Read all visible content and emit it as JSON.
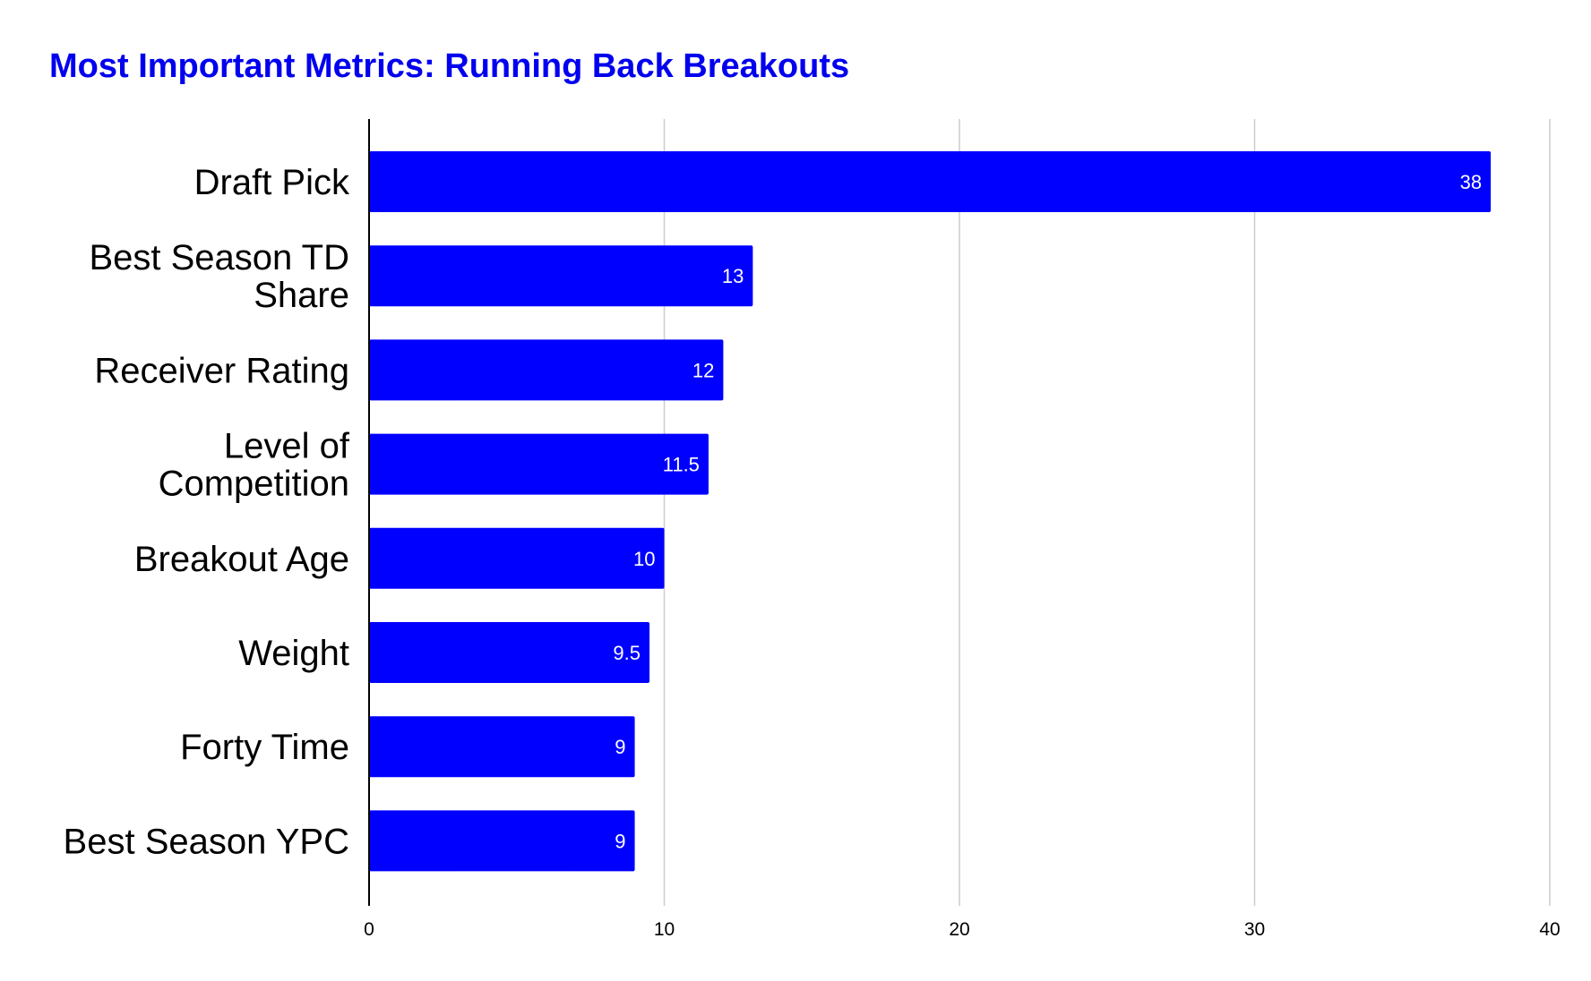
{
  "chart_data": {
    "type": "bar",
    "orientation": "horizontal",
    "title": "Most Important Metrics: Running Back Breakouts",
    "xlabel": "",
    "ylabel": "",
    "categories": [
      "Draft Pick",
      "Best Season TD Share",
      "Receiver Rating",
      "Level of Competition",
      "Breakout Age",
      "Weight",
      "Forty Time",
      "Best Season YPC"
    ],
    "category_lines": [
      [
        "Draft Pick"
      ],
      [
        "Best Season TD",
        "Share"
      ],
      [
        "Receiver Rating"
      ],
      [
        "Level of",
        "Competition"
      ],
      [
        "Breakout Age"
      ],
      [
        "Weight"
      ],
      [
        "Forty Time"
      ],
      [
        "Best Season YPC"
      ]
    ],
    "values": [
      38,
      13,
      12,
      11.5,
      10,
      9.5,
      9,
      9
    ],
    "data_labels": [
      "38",
      "13",
      "12",
      "11.5",
      "10",
      "9.5",
      "9",
      "9"
    ],
    "xlim": [
      0,
      40
    ],
    "xticks": [
      0,
      10,
      20,
      30,
      40
    ],
    "xtick_labels": [
      "0",
      "10",
      "20",
      "30",
      "40"
    ],
    "grid": "vertical",
    "legend": "none",
    "colors": {
      "bar": "#0000ff",
      "title": "#0000ee",
      "grid": "#cccccc",
      "axis": "#000000",
      "data_label": "#ffffff"
    }
  }
}
